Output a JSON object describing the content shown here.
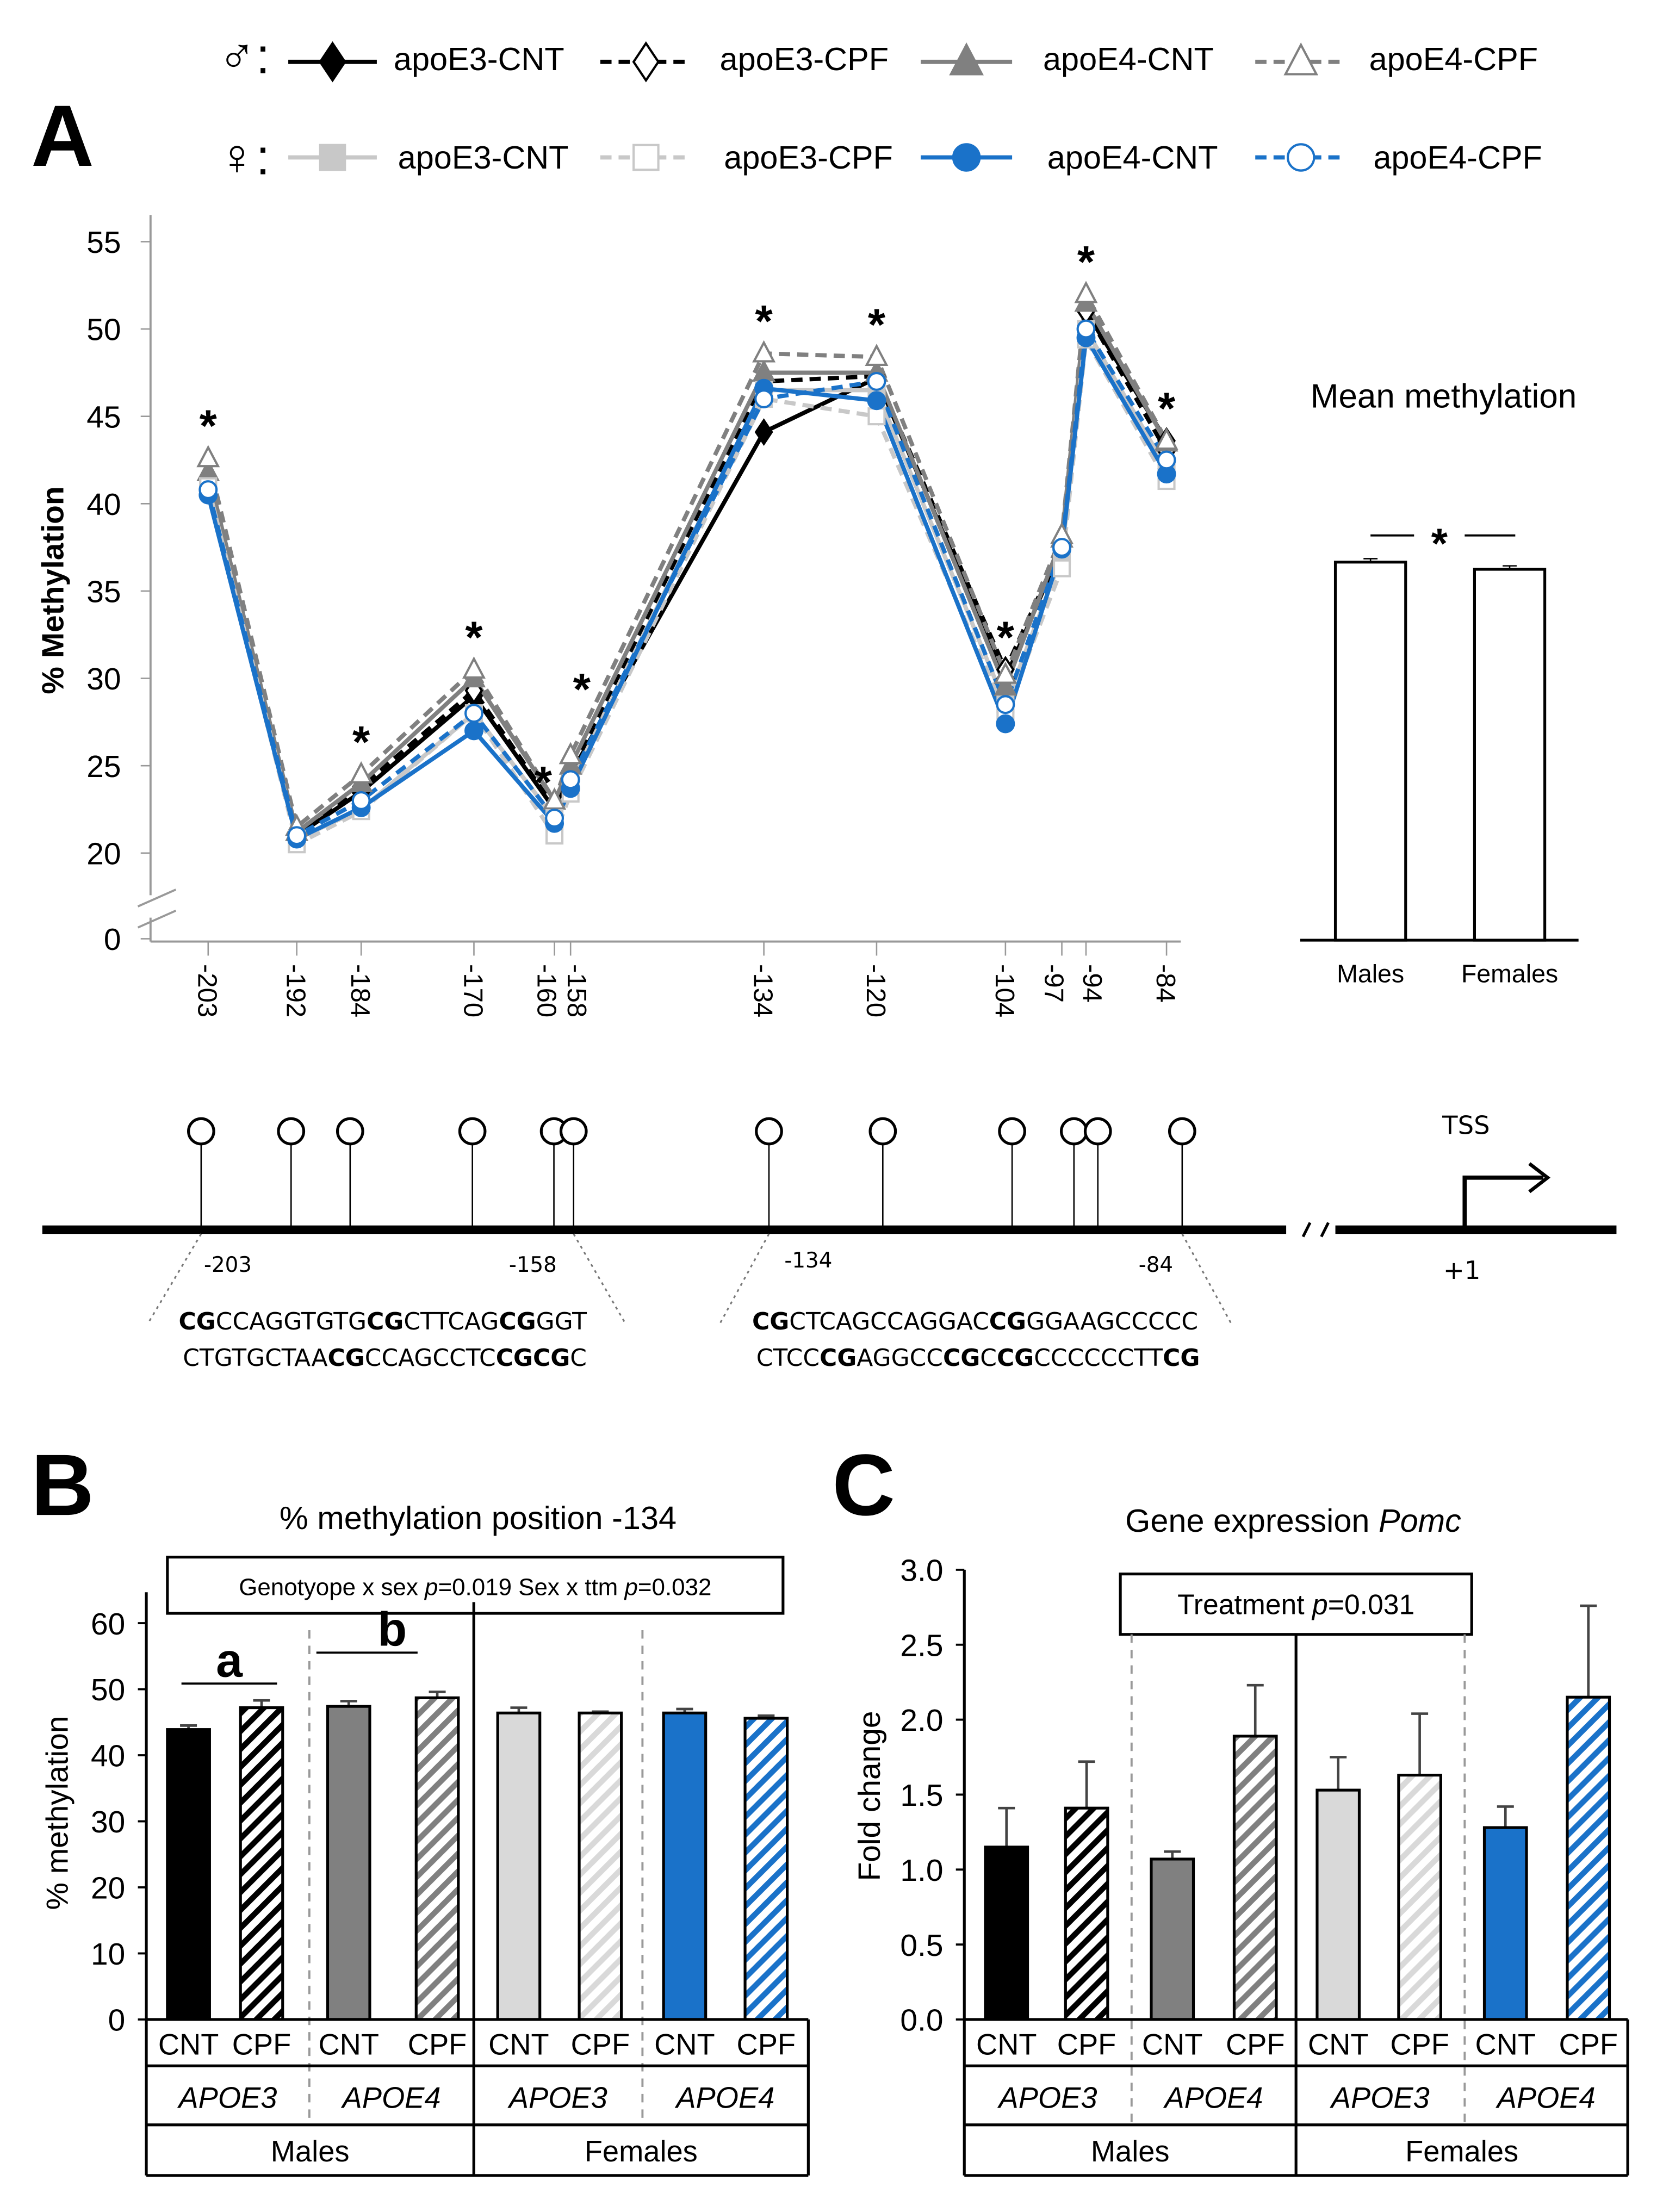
{
  "panels": {
    "a": "A",
    "b": "B",
    "c": "C"
  },
  "legend": {
    "male_symbol": "♂:",
    "female_symbol": "♀:",
    "male": [
      "apoE3-CNT",
      "apoE3-CPF",
      "apoE4-CNT",
      "apoE4-CPF"
    ],
    "female": [
      "apoE3-CNT",
      "apoE3-CPF",
      "apoE4-CNT",
      "apoE4-CPF"
    ]
  },
  "colors": {
    "black": "#000000",
    "gray": "#808080",
    "light": "#c8c8c8",
    "light_bar": "#d9d9d9",
    "blue": "#1a72c9"
  },
  "chart_data": [
    {
      "type": "line",
      "title": "",
      "ylabel": "% Methylation",
      "xlabel": "",
      "x": [
        -203,
        -192,
        -184,
        -170,
        -160,
        -158,
        -134,
        -120,
        -104,
        -97,
        -94,
        -84
      ],
      "x_tick_labels": [
        "-203",
        "-192",
        "-184",
        "-170",
        "-160",
        "-158",
        "-134",
        "-120",
        "-104",
        "-97",
        "-94",
        "-84"
      ],
      "y_ticks": [
        "0",
        "20",
        "25",
        "30",
        "35",
        "40",
        "45",
        "50",
        "55"
      ],
      "ylim": [
        0,
        55
      ],
      "axis_break": "between 0 and 20",
      "significant_positions": [
        -203,
        -184,
        -170,
        -160,
        -158,
        -134,
        -120,
        -104,
        -94,
        -84
      ],
      "significance_mark": "*",
      "series": [
        {
          "name": "♂ apoE3-CNT",
          "color": "#000000",
          "dash": false,
          "marker": "diamond",
          "filled": true,
          "values": [
            41.5,
            21.0,
            23.5,
            29.0,
            22.5,
            24.5,
            44.1,
            47.2,
            30.0,
            37.5,
            51.0,
            43.6
          ]
        },
        {
          "name": "♂ apoE3-CPF",
          "color": "#000000",
          "dash": true,
          "marker": "diamond",
          "filled": false,
          "values": [
            41.5,
            21.0,
            23.8,
            29.3,
            22.6,
            24.6,
            47.0,
            47.3,
            30.5,
            37.6,
            51.0,
            43.0
          ]
        },
        {
          "name": "♂ apoE4-CNT",
          "color": "#808080",
          "dash": false,
          "marker": "triangle",
          "filled": true,
          "values": [
            41.8,
            21.2,
            24.0,
            30.0,
            23.0,
            25.0,
            47.5,
            47.5,
            29.5,
            38.0,
            51.5,
            43.5
          ]
        },
        {
          "name": "♂ apoE4-CPF",
          "color": "#808080",
          "dash": true,
          "marker": "triangle",
          "filled": false,
          "values": [
            42.6,
            21.5,
            24.5,
            30.5,
            23.0,
            25.6,
            48.6,
            48.4,
            30.2,
            38.2,
            52.0,
            43.6
          ]
        },
        {
          "name": "♀ apoE3-CNT",
          "color": "#c8c8c8",
          "dash": false,
          "marker": "square",
          "filled": true,
          "values": [
            41.0,
            20.8,
            22.5,
            28.0,
            22.0,
            24.0,
            46.5,
            46.5,
            28.5,
            37.0,
            50.0,
            42.0
          ]
        },
        {
          "name": "♀ apoE3-CPF",
          "color": "#c8c8c8",
          "dash": true,
          "marker": "square",
          "filled": false,
          "values": [
            41.0,
            20.5,
            22.4,
            28.0,
            21.0,
            23.4,
            46.0,
            45.0,
            28.0,
            36.3,
            49.4,
            41.3
          ]
        },
        {
          "name": "♀ apoE4-CNT",
          "color": "#1a72c9",
          "dash": false,
          "marker": "circle",
          "filled": true,
          "values": [
            40.5,
            20.8,
            22.6,
            27.0,
            21.7,
            23.7,
            46.6,
            45.9,
            27.4,
            37.4,
            49.5,
            41.7
          ]
        },
        {
          "name": "♀ apoE4-CPF",
          "color": "#1a72c9",
          "dash": true,
          "marker": "circle",
          "filled": false,
          "values": [
            40.8,
            21.0,
            23.0,
            28.0,
            22.0,
            24.2,
            46.0,
            47.0,
            28.5,
            37.5,
            50.0,
            42.5
          ]
        }
      ]
    },
    {
      "type": "bar",
      "title": "Mean methylation",
      "categories": [
        "Males",
        "Females"
      ],
      "values": [
        36.8,
        36.1
      ],
      "errors": [
        0.2,
        0.2
      ],
      "significance": "*"
    },
    {
      "type": "bar",
      "title": "% methylation position -134",
      "ylabel": "% methylation",
      "ylim": [
        0,
        60
      ],
      "y_ticks": [
        "0",
        "10",
        "20",
        "30",
        "40",
        "50",
        "60"
      ],
      "stats_box": [
        {
          "t": "Genotyope x sex ",
          "i": false
        },
        {
          "t": "p",
          "i": true
        },
        {
          "t": "=0.019 Sex x ttm ",
          "i": false
        },
        {
          "t": "p",
          "i": true
        },
        {
          "t": "=0.032",
          "i": false
        }
      ],
      "treatments": [
        "CNT",
        "CPF",
        "CNT",
        "CPF",
        "CNT",
        "CPF",
        "CNT",
        "CPF"
      ],
      "genotypes": [
        "APOE3",
        "APOE4",
        "APOE3",
        "APOE4"
      ],
      "sexes": [
        "Males",
        "Females"
      ],
      "values": [
        43.9,
        47.2,
        47.4,
        48.7,
        46.4,
        46.4,
        46.4,
        45.6
      ],
      "errors": [
        0.6,
        1.1,
        0.8,
        0.9,
        0.8,
        0.2,
        0.6,
        0.4
      ],
      "group_letters": [
        "a",
        "b"
      ]
    },
    {
      "type": "bar",
      "title": "Gene expression ",
      "title_italic": "Pomc",
      "ylabel": "Fold change",
      "ylim": [
        0,
        3
      ],
      "y_ticks": [
        "0.0",
        "0.5",
        "1.0",
        "1.5",
        "2.0",
        "2.5",
        "3.0"
      ],
      "stats_box": [
        {
          "t": "Treatment ",
          "i": false
        },
        {
          "t": "p",
          "i": true
        },
        {
          "t": "=0.031",
          "i": false
        }
      ],
      "treatments": [
        "CNT",
        "CPF",
        "CNT",
        "CPF",
        "CNT",
        "CPF",
        "CNT",
        "CPF"
      ],
      "genotypes": [
        "APOE3",
        "APOE4",
        "APOE3",
        "APOE4"
      ],
      "sexes": [
        "Males",
        "Females"
      ],
      "values": [
        1.15,
        1.41,
        1.07,
        1.89,
        1.53,
        1.63,
        1.28,
        2.15
      ],
      "errors": [
        0.26,
        0.31,
        0.05,
        0.34,
        0.22,
        0.41,
        0.14,
        0.61
      ]
    }
  ],
  "gene_map": {
    "cpg_count": 12,
    "labels": [
      "-203",
      "-158",
      "-134",
      "-84"
    ],
    "tss": "TSS",
    "plus_one": "+1",
    "seq_left": [
      [
        {
          "t": "CG",
          "b": true
        },
        {
          "t": "CCAGGTGTG",
          "b": false
        },
        {
          "t": "CG",
          "b": true
        },
        {
          "t": "CTTCAG",
          "b": false
        },
        {
          "t": "CG",
          "b": true
        },
        {
          "t": "GGT",
          "b": false
        }
      ],
      [
        {
          "t": "CTGTGCTAA",
          "b": false
        },
        {
          "t": "CG",
          "b": true
        },
        {
          "t": "CCAGCCTC",
          "b": false
        },
        {
          "t": "CGCG",
          "b": true
        },
        {
          "t": "C",
          "b": false
        }
      ]
    ],
    "seq_right": [
      [
        {
          "t": "CG",
          "b": true
        },
        {
          "t": "CTCAGCCAGGAC",
          "b": false
        },
        {
          "t": "CG",
          "b": true
        },
        {
          "t": "GGAAGCCCCC",
          "b": false
        }
      ],
      [
        {
          "t": "CTCC",
          "b": false
        },
        {
          "t": "CG",
          "b": true
        },
        {
          "t": "AGGCC",
          "b": false
        },
        {
          "t": "CG",
          "b": true
        },
        {
          "t": "C",
          "b": false
        },
        {
          "t": "CG",
          "b": true
        },
        {
          "t": "CCCCCCTT",
          "b": false
        },
        {
          "t": "CG",
          "b": true
        }
      ]
    ]
  }
}
